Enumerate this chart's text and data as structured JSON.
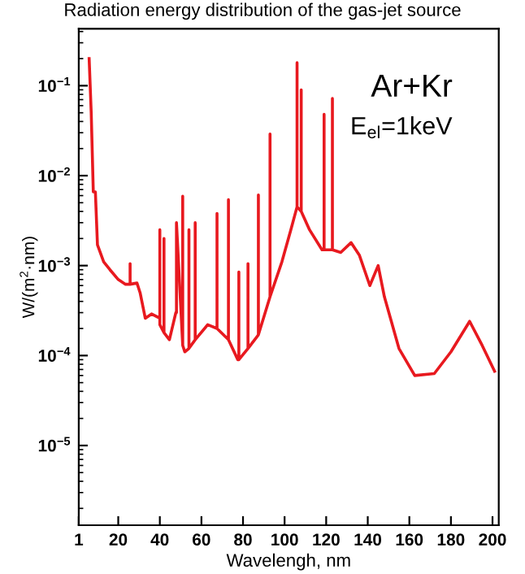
{
  "chart_data": {
    "type": "line",
    "title": "Radiation energy distribution of the gas-jet source",
    "xlabel": "Wavelengh, nm",
    "ylabel": "W/(m$^{2}$·nm)",
    "annotations": [
      "Ar+Kr",
      "E$_{el}$=1keV"
    ],
    "log": "y",
    "grid": false,
    "legend": false,
    "marker": "none",
    "line_style": "solid",
    "xlim": [
      1,
      203
    ],
    "xticks": [
      1,
      20,
      40,
      60,
      80,
      100,
      120,
      140,
      160,
      180,
      200
    ],
    "ylim": [
      1.3e-06,
      0.43
    ],
    "yticks": [
      {
        "value": 0.1,
        "label": "10$^{−1}$"
      },
      {
        "value": 0.01,
        "label": "10$^{−2}$"
      },
      {
        "value": 0.001,
        "label": "10$^{−3}$"
      },
      {
        "value": 0.0001,
        "label": "10$^{−4}$"
      },
      {
        "value": 1e-05,
        "label": "10$^{−5}$"
      }
    ],
    "series": [
      {
        "color": "#e8191f",
        "x": [
          6,
          7,
          8,
          9,
          10,
          13,
          16,
          20,
          23.5,
          25.7,
          25.7,
          25.7,
          29,
          30.5,
          33,
          36,
          40,
          40,
          40,
          42,
          42,
          42,
          44.6,
          47.7,
          48,
          48,
          51,
          51,
          51,
          52,
          54,
          54,
          54,
          57,
          57,
          57,
          63,
          67.5,
          67.5,
          67.5,
          73,
          73,
          73,
          77.5,
          78,
          78,
          78,
          82.4,
          82.4,
          82.4,
          87.4,
          87.4,
          87.4,
          93,
          93,
          93,
          98.7,
          103,
          106,
          106,
          106,
          108,
          108,
          108,
          112,
          118,
          119,
          119,
          119,
          123,
          123,
          123,
          127,
          132,
          136,
          141,
          145,
          148,
          155,
          162.6,
          172,
          180,
          189,
          195,
          201
        ],
        "values": [
          0.2,
          0.05,
          0.0066,
          0.0066,
          0.0017,
          0.0011,
          0.0009,
          0.0007,
          0.00062,
          0.00062,
          0.00105,
          0.00062,
          0.00064,
          0.0005,
          0.00026,
          0.00029,
          0.00026,
          0.0025,
          0.00022,
          0.00018,
          0.002,
          0.00018,
          0.00015,
          0.0003,
          0.0003,
          0.003,
          0.00013,
          0.0059,
          0.00013,
          0.00011,
          0.00012,
          0.0025,
          0.00012,
          0.00015,
          0.003,
          0.00015,
          0.00022,
          0.0002,
          0.0038,
          0.0002,
          0.00015,
          0.0054,
          0.00015,
          9e-05,
          9e-05,
          0.00085,
          9e-05,
          0.00012,
          0.00105,
          0.00012,
          0.00017,
          0.0061,
          0.00017,
          0.00045,
          0.029,
          0.00045,
          0.0011,
          0.0025,
          0.0045,
          0.18,
          0.0045,
          0.004,
          0.09,
          0.004,
          0.0025,
          0.0015,
          0.0015,
          0.048,
          0.0015,
          0.0015,
          0.072,
          0.0015,
          0.0014,
          0.0018,
          0.0013,
          0.0006,
          0.001,
          0.00045,
          0.00012,
          6e-05,
          6.3e-05,
          0.00011,
          0.00024,
          0.00013,
          6.7e-05
        ]
      }
    ]
  }
}
